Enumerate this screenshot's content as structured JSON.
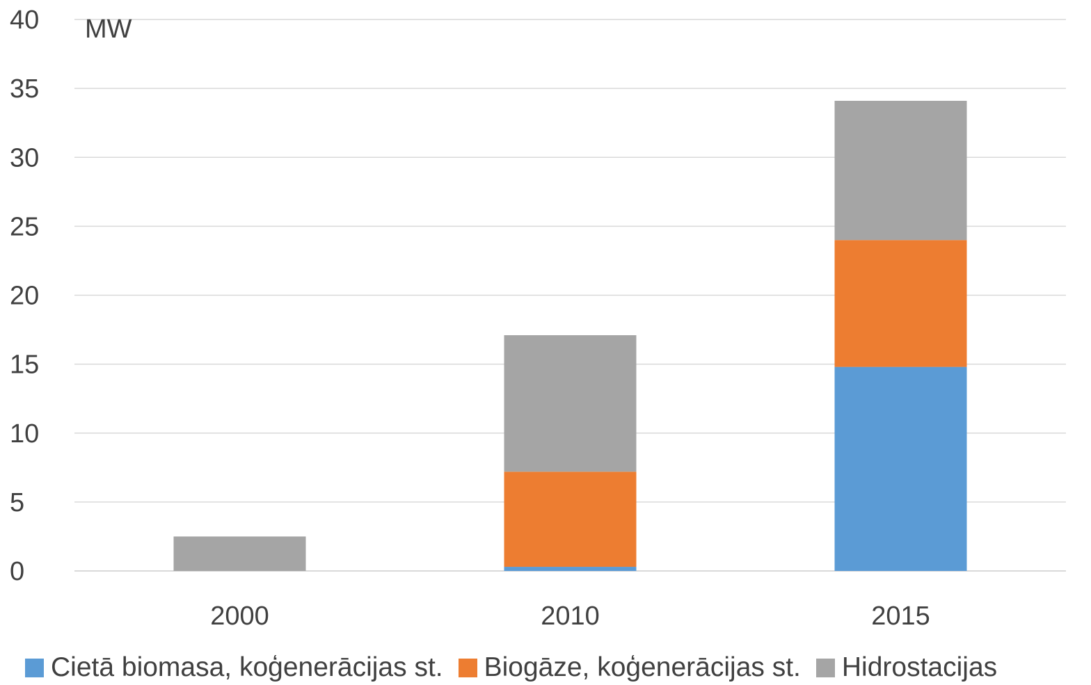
{
  "chart_data": {
    "type": "bar",
    "stacked": true,
    "categories": [
      "2000",
      "2010",
      "2015"
    ],
    "series": [
      {
        "name": "Cietā biomasa, koģenerācijas st.",
        "color": "#5b9bd5",
        "values": [
          0,
          0.3,
          14.8
        ]
      },
      {
        "name": "Biogāze, koģenerācijas st.",
        "color": "#ed7d31",
        "values": [
          0,
          6.9,
          9.2
        ]
      },
      {
        "name": "Hidrostacijas",
        "color": "#a5a5a5",
        "values": [
          2.5,
          9.9,
          10.1
        ]
      }
    ],
    "ylim": [
      0,
      40
    ],
    "yticks": [
      "0",
      "5",
      "10",
      "15",
      "20",
      "25",
      "30",
      "35",
      "40"
    ],
    "ylabel": "MW",
    "grid": true,
    "legend_position": "bottom"
  }
}
